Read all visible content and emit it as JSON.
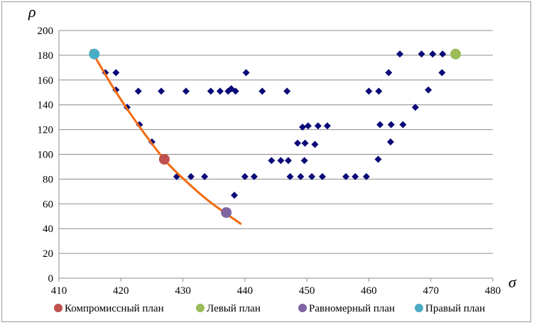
{
  "chart_data": {
    "type": "scatter",
    "xlabel": "σ",
    "ylabel": "ρ",
    "xlim": [
      410,
      480
    ],
    "ylim": [
      0,
      200
    ],
    "xticks": [
      410,
      420,
      430,
      440,
      450,
      460,
      470,
      480
    ],
    "yticks": [
      0,
      20,
      40,
      60,
      80,
      100,
      120,
      140,
      160,
      180,
      200
    ],
    "grid": "horizontal",
    "legend_position": "bottom",
    "colors": {
      "points": "#0a0a78",
      "frontier": "#f26a0f",
      "compromise": "#c0504d",
      "left": "#9bbb59",
      "uniform": "#8064a2",
      "right": "#4bacc6"
    },
    "series": [
      {
        "type": "scatter",
        "marker": "diamond",
        "points": [
          [
            417.5,
            166
          ],
          [
            419.2,
            166
          ],
          [
            419.2,
            152
          ],
          [
            421,
            138
          ],
          [
            423,
            124
          ],
          [
            422.8,
            151
          ],
          [
            425,
            110
          ],
          [
            426.5,
            151
          ],
          [
            429,
            82
          ],
          [
            430.5,
            151
          ],
          [
            431.3,
            82
          ],
          [
            433.5,
            82
          ],
          [
            434.5,
            151
          ],
          [
            436,
            151
          ],
          [
            437.3,
            151
          ],
          [
            437.8,
            153
          ],
          [
            438.5,
            151
          ],
          [
            438.3,
            67
          ],
          [
            440,
            82
          ],
          [
            440.2,
            166
          ],
          [
            441.5,
            82
          ],
          [
            442.8,
            151
          ],
          [
            444.3,
            95
          ],
          [
            445.8,
            95
          ],
          [
            446.8,
            151
          ],
          [
            447,
            95
          ],
          [
            447.3,
            82
          ],
          [
            448.5,
            109
          ],
          [
            449,
            82
          ],
          [
            449.3,
            122
          ],
          [
            449.6,
            95
          ],
          [
            449.7,
            109
          ],
          [
            450.2,
            123
          ],
          [
            450.8,
            82
          ],
          [
            451.3,
            108
          ],
          [
            451.8,
            123
          ],
          [
            452.5,
            82
          ],
          [
            453.3,
            123
          ],
          [
            456.3,
            82
          ],
          [
            457.8,
            82
          ],
          [
            459.6,
            82
          ],
          [
            460,
            151
          ],
          [
            461.5,
            96
          ],
          [
            461.6,
            151
          ],
          [
            461.8,
            124
          ],
          [
            463.2,
            166
          ],
          [
            463.5,
            110
          ],
          [
            463.6,
            124
          ],
          [
            465,
            181
          ],
          [
            465.5,
            124
          ],
          [
            467.5,
            138
          ],
          [
            468.5,
            181
          ],
          [
            469.6,
            152
          ],
          [
            470.3,
            181
          ],
          [
            471.8,
            166
          ],
          [
            471.9,
            181
          ]
        ]
      },
      {
        "type": "line",
        "points": [
          [
            415.2,
            184
          ],
          [
            418.5,
            156
          ],
          [
            421.5,
            133
          ],
          [
            424.5,
            112
          ],
          [
            427.5,
            93
          ],
          [
            431,
            76
          ],
          [
            434,
            63
          ],
          [
            437,
            52
          ],
          [
            439.3,
            44
          ]
        ]
      },
      {
        "name": "Компромиссный план",
        "type": "scatter",
        "marker": "circle",
        "points": [
          [
            427,
            96
          ]
        ]
      },
      {
        "name": "Левый план",
        "type": "scatter",
        "marker": "circle",
        "points": [
          [
            474,
            181
          ]
        ]
      },
      {
        "name": "Равномерный план",
        "type": "scatter",
        "marker": "circle",
        "points": [
          [
            437,
            53
          ]
        ]
      },
      {
        "name": "Правый план",
        "type": "scatter",
        "marker": "circle",
        "points": [
          [
            415.7,
            181
          ]
        ]
      }
    ]
  }
}
